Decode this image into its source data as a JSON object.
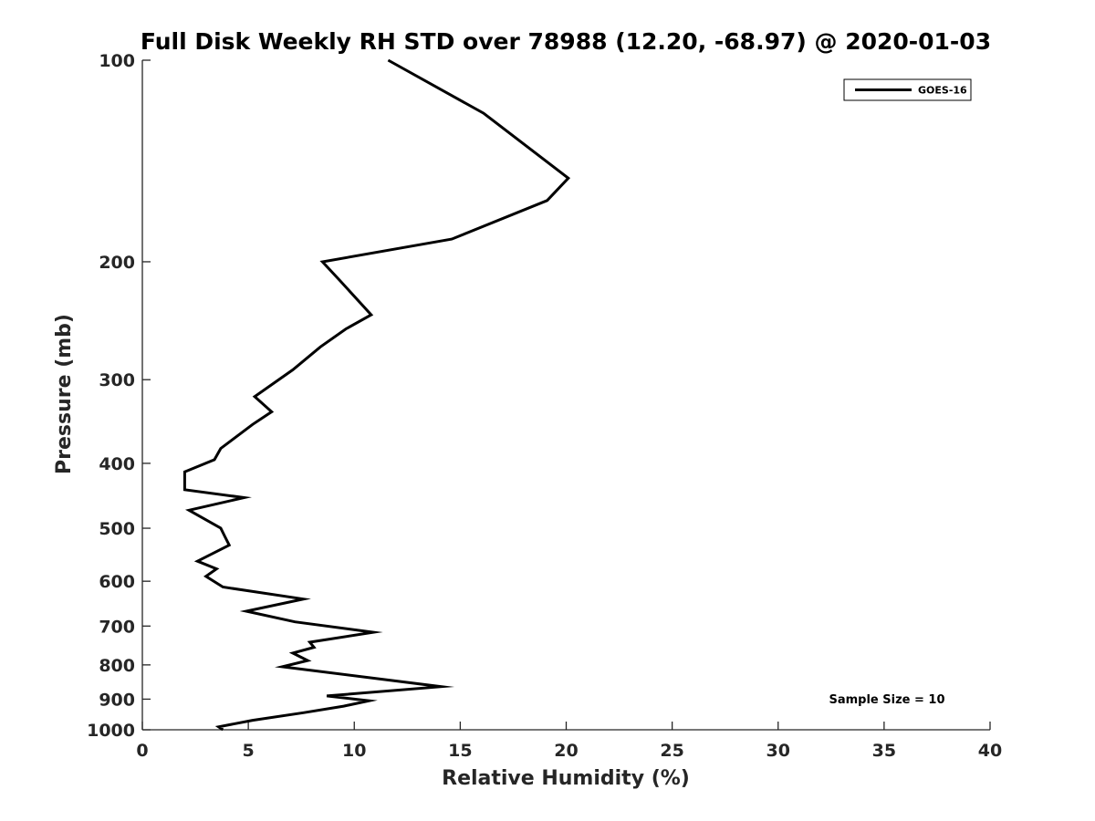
{
  "chart_data": {
    "type": "line",
    "title": "Full Disk Weekly RH STD over 78988 (12.20, -68.97) @ 2020-01-03",
    "xlabel": "Relative Humidity (%)",
    "ylabel": "Pressure (mb)",
    "xlim": [
      0,
      40
    ],
    "ylim": [
      100,
      1000
    ],
    "y_scale": "log",
    "y_reversed": true,
    "grid": false,
    "legend_position": "top-right",
    "x_ticks": [
      "0",
      "5",
      "10",
      "15",
      "20",
      "25",
      "30",
      "35",
      "40"
    ],
    "y_ticks": [
      "100",
      "200",
      "300",
      "400",
      "500",
      "600",
      "700",
      "800",
      "900",
      "1000"
    ],
    "series": [
      {
        "name": "GOES-16",
        "color": "#000000",
        "x": [
          11.6,
          16.1,
          20.1,
          19.1,
          14.6,
          8.5,
          9.3,
          10.8,
          9.6,
          8.4,
          7.1,
          5.3,
          6.1,
          5.2,
          3.7,
          3.4,
          2.0,
          2.0,
          4.8,
          2.2,
          3.7,
          3.9,
          4.1,
          2.6,
          3.5,
          3.0,
          3.8,
          7.6,
          4.9,
          7.2,
          10.9,
          7.9,
          8.1,
          7.1,
          7.8,
          6.6,
          14.1,
          8.7,
          10.7,
          9.5,
          7.6,
          5.2,
          3.6,
          3.8
        ],
        "y": [
          100,
          120,
          150,
          162,
          185,
          200,
          213,
          240,
          252,
          268,
          290,
          318,
          335,
          350,
          380,
          395,
          412,
          438,
          450,
          470,
          500,
          515,
          530,
          560,
          575,
          590,
          612,
          638,
          665,
          690,
          715,
          740,
          753,
          768,
          788,
          805,
          862,
          890,
          905,
          922,
          943,
          968,
          990,
          1000
        ]
      }
    ],
    "annotation": "Sample Size = 10"
  }
}
